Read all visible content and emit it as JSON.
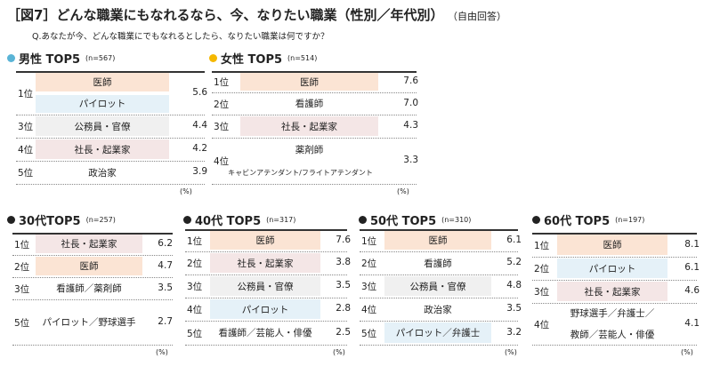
{
  "title": "［図7］どんな職業にもなれるなら、今、なりたい職業（性別／年代別）",
  "note": "（自由回答）",
  "question": "Q.あなたが今、どんな職業にでもなれるとしたら、なりたい職業は何ですか？",
  "colors": {
    "orange": "#fbe4d4",
    "blue": "#e5f1f8",
    "pink": "#f4e6e6",
    "gray": "#f0f0f0",
    "male_dot": "#5ab4d6",
    "female_dot": "#f5b800",
    "age_dot": "#222222"
  },
  "unit": "(%)",
  "sections": [
    {
      "id": "male",
      "heading": "男性 TOP5",
      "n": "(n=567)",
      "rows": [
        {
          "rank": "1位",
          "items": [
            {
              "text": "医師",
              "color": "orange"
            },
            {
              "text": "パイロット",
              "color": "blue"
            }
          ],
          "value": "5.6"
        },
        {
          "rank": "3位",
          "items": [
            {
              "text": "公務員・官僚",
              "color": "gray"
            }
          ],
          "value": "4.4"
        },
        {
          "rank": "4位",
          "items": [
            {
              "text": "社長・起業家",
              "color": "pink"
            }
          ],
          "value": "4.2"
        },
        {
          "rank": "5位",
          "items": [
            {
              "text": "政治家",
              "color": "none"
            }
          ],
          "value": "3.9"
        }
      ]
    },
    {
      "id": "female",
      "heading": "女性 TOP5",
      "n": "(n=514)",
      "rows": [
        {
          "rank": "1位",
          "items": [
            {
              "text": "医師",
              "color": "orange"
            }
          ],
          "value": "7.6"
        },
        {
          "rank": "2位",
          "items": [
            {
              "text": "看護師",
              "color": "none"
            }
          ],
          "value": "7.0"
        },
        {
          "rank": "3位",
          "items": [
            {
              "text": "社長・起業家",
              "color": "pink"
            }
          ],
          "value": "4.3"
        },
        {
          "rank": "4位",
          "items": [
            {
              "text": "薬剤師",
              "color": "none"
            },
            {
              "text": "キャビンアテンダント/フライトアテンダント",
              "color": "none",
              "small": true
            }
          ],
          "value": "3.3"
        }
      ]
    },
    {
      "id": "age30",
      "heading": "30代TOP5",
      "n": "(n=257)",
      "rows": [
        {
          "rank": "1位",
          "items": [
            {
              "text": "社長・起業家",
              "color": "pink"
            }
          ],
          "value": "6.2"
        },
        {
          "rank": "2位",
          "items": [
            {
              "text": "医師",
              "color": "orange"
            }
          ],
          "value": "4.7"
        },
        {
          "rank": "3位",
          "items": [
            {
              "text": "看護師／薬剤師",
              "color": "none"
            }
          ],
          "value": "3.5"
        },
        {
          "rank": "5位",
          "items": [
            {
              "text": "パイロット／野球選手",
              "color": "none"
            }
          ],
          "value": "2.7"
        }
      ]
    },
    {
      "id": "age40",
      "heading": "40代 TOP5",
      "n": "(n=317)",
      "rows": [
        {
          "rank": "1位",
          "items": [
            {
              "text": "医師",
              "color": "orange"
            }
          ],
          "value": "7.6"
        },
        {
          "rank": "2位",
          "items": [
            {
              "text": "社長・起業家",
              "color": "pink"
            }
          ],
          "value": "3.8"
        },
        {
          "rank": "3位",
          "items": [
            {
              "text": "公務員・官僚",
              "color": "gray"
            }
          ],
          "value": "3.5"
        },
        {
          "rank": "4位",
          "items": [
            {
              "text": "パイロット",
              "color": "blue"
            }
          ],
          "value": "2.8"
        },
        {
          "rank": "5位",
          "items": [
            {
              "text": "看護師／芸能人・俳優",
              "color": "none"
            }
          ],
          "value": "2.5"
        }
      ]
    },
    {
      "id": "age50",
      "heading": "50代 TOP5",
      "n": "(n=310)",
      "rows": [
        {
          "rank": "1位",
          "items": [
            {
              "text": "医師",
              "color": "orange"
            }
          ],
          "value": "6.1"
        },
        {
          "rank": "2位",
          "items": [
            {
              "text": "看護師",
              "color": "none"
            }
          ],
          "value": "5.2"
        },
        {
          "rank": "3位",
          "items": [
            {
              "text": "公務員・官僚",
              "color": "gray"
            }
          ],
          "value": "4.8"
        },
        {
          "rank": "4位",
          "items": [
            {
              "text": "政治家",
              "color": "none"
            }
          ],
          "value": "3.5"
        },
        {
          "rank": "5位",
          "items": [
            {
              "text": "パイロット／弁護士",
              "color": "blue"
            }
          ],
          "value": "3.2"
        }
      ]
    },
    {
      "id": "age60",
      "heading": "60代 TOP5",
      "n": "(n=197)",
      "rows": [
        {
          "rank": "1位",
          "items": [
            {
              "text": "医師",
              "color": "orange"
            }
          ],
          "value": "8.1"
        },
        {
          "rank": "2位",
          "items": [
            {
              "text": "パイロット",
              "color": "blue"
            }
          ],
          "value": "6.1"
        },
        {
          "rank": "3位",
          "items": [
            {
              "text": "社長・起業家",
              "color": "pink"
            }
          ],
          "value": "4.6"
        },
        {
          "rank": "4位",
          "items": [
            {
              "text": "野球選手／弁護士／",
              "color": "none"
            },
            {
              "text": "教師／芸能人・俳優",
              "color": "none"
            }
          ],
          "value": "4.1"
        }
      ]
    }
  ]
}
